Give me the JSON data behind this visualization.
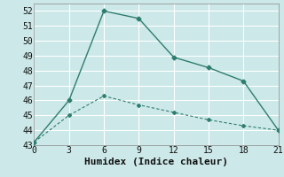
{
  "xlabel": "Humidex (Indice chaleur)",
  "x": [
    0,
    3,
    6,
    9,
    12,
    15,
    18,
    21
  ],
  "line1_y": [
    43.2,
    46.0,
    52.0,
    51.5,
    48.9,
    48.2,
    47.3,
    44.0
  ],
  "line2_y": [
    43.2,
    45.0,
    46.3,
    45.7,
    45.2,
    44.7,
    44.3,
    44.0
  ],
  "line_color": "#2e7d6e",
  "bg_color": "#cce8e8",
  "grid_color": "#ffffff",
  "xlim": [
    0,
    21
  ],
  "ylim": [
    43,
    52.5
  ],
  "xticks": [
    0,
    3,
    6,
    9,
    12,
    15,
    18,
    21
  ],
  "yticks": [
    43,
    44,
    45,
    46,
    47,
    48,
    49,
    50,
    51,
    52
  ],
  "tick_fontsize": 7,
  "xlabel_fontsize": 8
}
